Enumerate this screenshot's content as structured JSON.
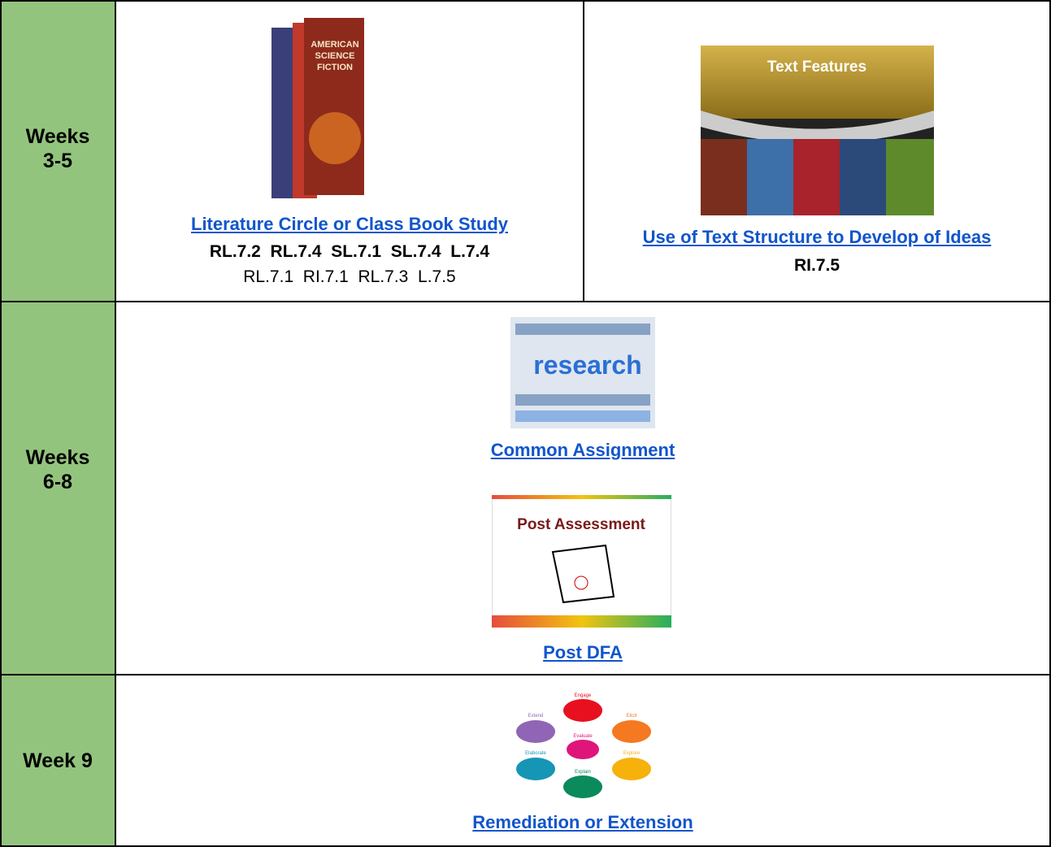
{
  "rows": [
    {
      "label_lines": [
        "Weeks",
        "3-5"
      ],
      "cells": [
        {
          "image_text": [
            "AMERICAN",
            "SCIENCE",
            "FICTION"
          ],
          "link": "Literature Circle or Class Book Study",
          "standards_bold": "RL.7.2  RL.7.4  SL.7.1  SL.7.4  L.7.4",
          "standards": "RL.7.1  RI.7.1  RL.7.3  L.7.5"
        },
        {
          "image_text": [
            "Text Features"
          ],
          "link": "Use of Text Structure to Develop of Ideas",
          "standards_bold": "RI.7.5"
        }
      ]
    },
    {
      "label_lines": [
        "Weeks",
        "6-8"
      ],
      "cells": [
        {
          "image_text": [
            "research"
          ],
          "link": "Common Assignment"
        },
        {
          "image_text": [
            "Post Assessment"
          ],
          "link": "Post DFA"
        }
      ]
    },
    {
      "label_lines": [
        "Week 9"
      ],
      "cells": [
        {
          "image_text": [
            "Engage",
            "Elicit",
            "Explore",
            "Explain",
            "Elaborate",
            "Extend",
            "Evaluate"
          ],
          "link": "Remediation or Extension"
        }
      ]
    }
  ]
}
